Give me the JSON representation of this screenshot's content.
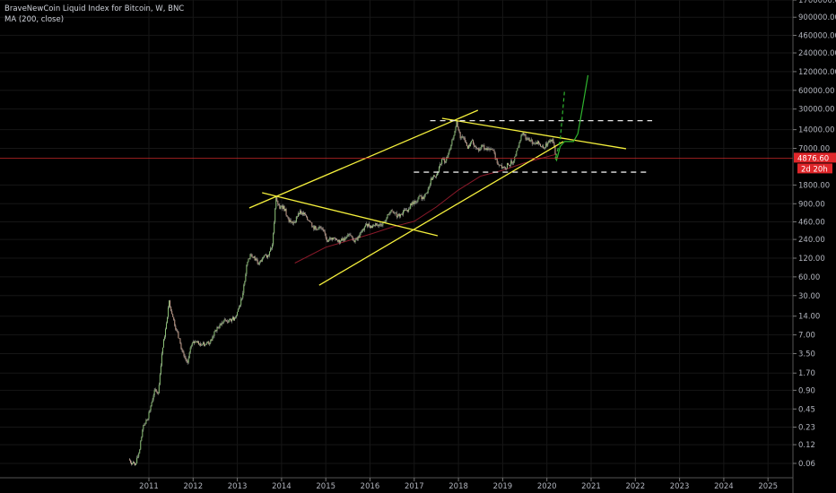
{
  "header": {
    "symbol_title": "BraveNewCoin Liquid Index for Bitcoin, W, BNC",
    "indicator": "MA (200, close)"
  },
  "chart_data": {
    "type": "candlestick",
    "yscale": "log",
    "grid": true,
    "x_ticks": [
      "2011",
      "2012",
      "2013",
      "2014",
      "2015",
      "2016",
      "2017",
      "2018",
      "2019",
      "2020",
      "2021",
      "2022",
      "2023",
      "2024",
      "2025"
    ],
    "y_ticks": [
      "1700000.00",
      "900000.00",
      "460000.00",
      "240000.00",
      "120000.00",
      "60000.00",
      "30000.00",
      "14000.00",
      "7000.00",
      "1800.00",
      "900.00",
      "460.00",
      "240.00",
      "120.00",
      "60.00",
      "30.00",
      "14.00",
      "7.00",
      "3.50",
      "1.70",
      "0.90",
      "0.45",
      "0.23",
      "0.12",
      "0.06"
    ],
    "last_price": "4876.60",
    "countdown": "2d 20h",
    "colors": {
      "up": "#8cc276",
      "down": "#c9a08c",
      "wick": "#9a9a9a",
      "ma": "#8b1a2a",
      "trendline": "#f5f03c",
      "dashed": "#e6e6e6",
      "projection": "#2fb52f",
      "price_line": "#c62828",
      "tag": "#e0262a"
    },
    "monthly_close": [
      [
        "2010-07",
        0.07
      ],
      [
        "2010-08",
        0.06
      ],
      [
        "2010-09",
        0.06
      ],
      [
        "2010-10",
        0.1
      ],
      [
        "2010-11",
        0.25
      ],
      [
        "2010-12",
        0.3
      ],
      [
        "2011-01",
        0.5
      ],
      [
        "2011-02",
        0.9
      ],
      [
        "2011-03",
        0.8
      ],
      [
        "2011-04",
        3.5
      ],
      [
        "2011-05",
        8.7
      ],
      [
        "2011-06",
        25
      ],
      [
        "2011-07",
        13.5
      ],
      [
        "2011-08",
        8.2
      ],
      [
        "2011-09",
        5.1
      ],
      [
        "2011-10",
        3.2
      ],
      [
        "2011-11",
        2.5
      ],
      [
        "2011-12",
        4.7
      ],
      [
        "2012-01",
        5.5
      ],
      [
        "2012-02",
        4.9
      ],
      [
        "2012-03",
        4.9
      ],
      [
        "2012-04",
        5
      ],
      [
        "2012-05",
        5.2
      ],
      [
        "2012-06",
        6.7
      ],
      [
        "2012-07",
        9.3
      ],
      [
        "2012-08",
        10
      ],
      [
        "2012-09",
        12.4
      ],
      [
        "2012-10",
        11.2
      ],
      [
        "2012-11",
        12.5
      ],
      [
        "2012-12",
        13.5
      ],
      [
        "2013-01",
        20
      ],
      [
        "2013-02",
        33
      ],
      [
        "2013-03",
        93
      ],
      [
        "2013-04",
        139
      ],
      [
        "2013-05",
        128
      ],
      [
        "2013-06",
        97
      ],
      [
        "2013-07",
        106
      ],
      [
        "2013-08",
        135
      ],
      [
        "2013-09",
        133
      ],
      [
        "2013-10",
        198
      ],
      [
        "2013-11",
        1150
      ],
      [
        "2013-12",
        750
      ],
      [
        "2014-01",
        830
      ],
      [
        "2014-02",
        560
      ],
      [
        "2014-03",
        450
      ],
      [
        "2014-04",
        445
      ],
      [
        "2014-05",
        630
      ],
      [
        "2014-06",
        640
      ],
      [
        "2014-07",
        585
      ],
      [
        "2014-08",
        480
      ],
      [
        "2014-09",
        390
      ],
      [
        "2014-10",
        340
      ],
      [
        "2014-11",
        375
      ],
      [
        "2014-12",
        320
      ],
      [
        "2015-01",
        220
      ],
      [
        "2015-02",
        255
      ],
      [
        "2015-03",
        245
      ],
      [
        "2015-04",
        235
      ],
      [
        "2015-05",
        230
      ],
      [
        "2015-06",
        263
      ],
      [
        "2015-07",
        285
      ],
      [
        "2015-08",
        230
      ],
      [
        "2015-09",
        236
      ],
      [
        "2015-10",
        313
      ],
      [
        "2015-11",
        378
      ],
      [
        "2015-12",
        430
      ],
      [
        "2016-01",
        370
      ],
      [
        "2016-02",
        437
      ],
      [
        "2016-03",
        416
      ],
      [
        "2016-04",
        448
      ],
      [
        "2016-05",
        530
      ],
      [
        "2016-06",
        670
      ],
      [
        "2016-07",
        624
      ],
      [
        "2016-08",
        575
      ],
      [
        "2016-09",
        608
      ],
      [
        "2016-10",
        700
      ],
      [
        "2016-11",
        742
      ],
      [
        "2016-12",
        963
      ],
      [
        "2017-01",
        970
      ],
      [
        "2017-02",
        1190
      ],
      [
        "2017-03",
        1080
      ],
      [
        "2017-04",
        1350
      ],
      [
        "2017-05",
        2300
      ],
      [
        "2017-06",
        2480
      ],
      [
        "2017-07",
        2875
      ],
      [
        "2017-08",
        4700
      ],
      [
        "2017-09",
        4340
      ],
      [
        "2017-10",
        6470
      ],
      [
        "2017-11",
        10000
      ],
      [
        "2017-12",
        19500
      ],
      [
        "2018-01",
        10200
      ],
      [
        "2018-02",
        10300
      ],
      [
        "2018-03",
        6900
      ],
      [
        "2018-04",
        9240
      ],
      [
        "2018-05",
        7500
      ],
      [
        "2018-06",
        6400
      ],
      [
        "2018-07",
        7730
      ],
      [
        "2018-08",
        7030
      ],
      [
        "2018-09",
        6630
      ],
      [
        "2018-10",
        6370
      ],
      [
        "2018-11",
        4020
      ],
      [
        "2018-12",
        3740
      ],
      [
        "2019-01",
        3460
      ],
      [
        "2019-02",
        3810
      ],
      [
        "2019-03",
        4100
      ],
      [
        "2019-04",
        5320
      ],
      [
        "2019-05",
        8570
      ],
      [
        "2019-06",
        12500
      ],
      [
        "2019-07",
        10080
      ],
      [
        "2019-08",
        9600
      ],
      [
        "2019-09",
        8300
      ],
      [
        "2019-10",
        9150
      ],
      [
        "2019-11",
        7550
      ],
      [
        "2019-12",
        7190
      ],
      [
        "2020-01",
        9350
      ],
      [
        "2020-02",
        9800
      ],
      [
        "2020-03",
        4876.6
      ]
    ],
    "ma200": [
      [
        2014.3,
        100
      ],
      [
        2015.0,
        180
      ],
      [
        2016.0,
        290
      ],
      [
        2016.5,
        380
      ],
      [
        2017.0,
        470
      ],
      [
        2017.5,
        800
      ],
      [
        2018.0,
        1500
      ],
      [
        2018.5,
        2500
      ],
      [
        2019.0,
        3100
      ],
      [
        2019.5,
        4100
      ],
      [
        2020.2,
        5600
      ]
    ],
    "annotations": {
      "trendlines": [
        {
          "from": [
            2013.27,
            770
          ],
          "to": [
            2018.44,
            28700
          ]
        },
        {
          "from": [
            2014.85,
            44
          ],
          "to": [
            2020.37,
            9000
          ]
        },
        {
          "from": [
            2013.56,
            1355
          ],
          "to": [
            2017.53,
            275
          ]
        },
        {
          "from": [
            2017.63,
            21300
          ],
          "to": [
            2021.79,
            6900
          ]
        }
      ],
      "horizontal_dashed": [
        {
          "price": 19500,
          "from": 2017.36,
          "to": 2022.38
        },
        {
          "price": 2900,
          "from": 2016.99,
          "to": 2022.3
        }
      ],
      "projection_dashed": [
        [
          2020.2,
          5000
        ],
        [
          2020.3,
          9500
        ],
        [
          2020.4,
          60000
        ]
      ],
      "projection_curve": [
        [
          2020.18,
          5000
        ],
        [
          2020.22,
          4500
        ],
        [
          2020.3,
          7500
        ],
        [
          2020.4,
          9000
        ],
        [
          2020.6,
          9000
        ],
        [
          2020.7,
          12000
        ],
        [
          2020.8,
          30000
        ],
        [
          2020.9,
          80000
        ],
        [
          2020.93,
          105000
        ]
      ]
    }
  }
}
